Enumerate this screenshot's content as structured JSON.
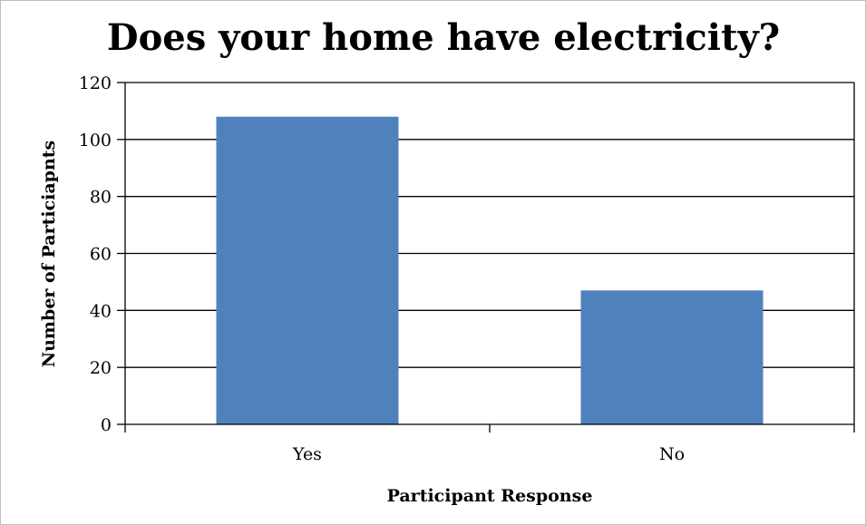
{
  "chart_data": {
    "type": "bar",
    "title": "Does your home have electricity?",
    "xlabel": "Participant Response",
    "ylabel": "Number of Particiapnts",
    "categories": [
      "Yes",
      "No"
    ],
    "values": [
      108,
      47
    ],
    "ylim": [
      0,
      120
    ],
    "yticks": [
      0,
      20,
      40,
      60,
      80,
      100,
      120
    ],
    "ytick_labels": [
      "0",
      "20",
      "40",
      "60",
      "80",
      "100",
      "120"
    ],
    "grid": true,
    "legend": "none",
    "bar_color": "#4f81bd"
  }
}
